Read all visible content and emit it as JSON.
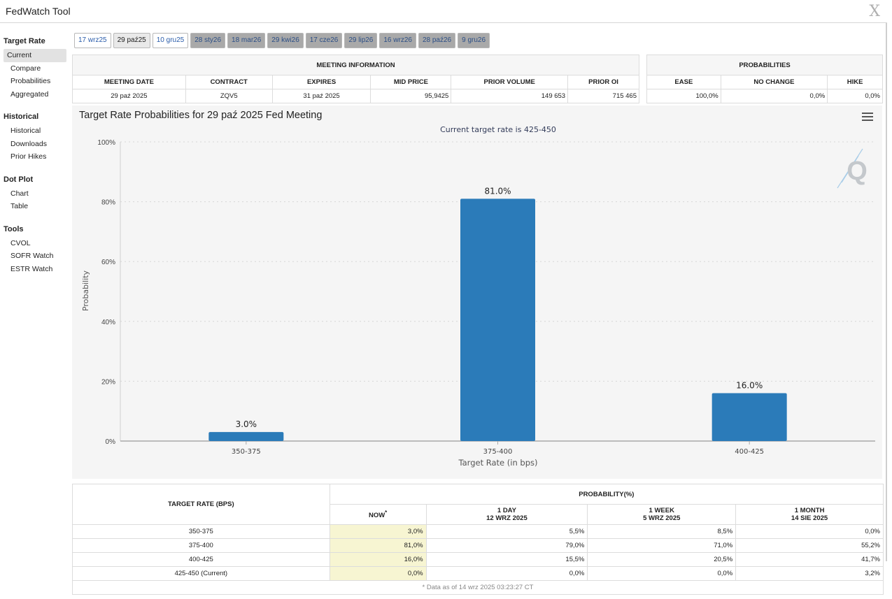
{
  "window": {
    "title": "FedWatch Tool",
    "close_glyph": "X"
  },
  "sidebar": {
    "groups": [
      {
        "title": "Target Rate",
        "items": [
          "Current",
          "Compare",
          "Probabilities",
          "Aggregated"
        ]
      },
      {
        "title": "Historical",
        "items": [
          "Historical",
          "Downloads",
          "Prior Hikes"
        ]
      },
      {
        "title": "Dot Plot",
        "items": [
          "Chart",
          "Table"
        ]
      },
      {
        "title": "Tools",
        "items": [
          "CVOL",
          "SOFR Watch",
          "ESTR Watch"
        ]
      }
    ],
    "active_item": "Current"
  },
  "tabs": [
    "17 wrz25",
    "29 paź25",
    "10 gru25",
    "28 sty26",
    "18 mar26",
    "29 kwi26",
    "17 cze26",
    "29 lip26",
    "16 wrz26",
    "28 paź26",
    "9 gru26"
  ],
  "meeting_info": {
    "header": "MEETING INFORMATION",
    "columns": [
      "MEETING DATE",
      "CONTRACT",
      "EXPIRES",
      "MID PRICE",
      "PRIOR VOLUME",
      "PRIOR OI"
    ],
    "values": [
      "29 paź 2025",
      "ZQV5",
      "31 paź 2025",
      "95,9425",
      "149 653",
      "715 465"
    ]
  },
  "probabilities": {
    "header": "PROBABILITIES",
    "columns": [
      "EASE",
      "NO CHANGE",
      "HIKE"
    ],
    "values": [
      "100,0%",
      "0,0%",
      "0,0%"
    ]
  },
  "chart": {
    "title": "Target Rate Probabilities for 29 paź 2025 Fed Meeting",
    "subtitle": "Current target rate is 425-450",
    "watermark": "Q"
  },
  "chart_data": {
    "type": "bar",
    "categories": [
      "350-375",
      "375-400",
      "400-425"
    ],
    "values": [
      3.0,
      81.0,
      16.0
    ],
    "data_labels": [
      "3.0%",
      "81.0%",
      "16.0%"
    ],
    "xlabel": "Target Rate (in bps)",
    "ylabel": "Probability",
    "ylim": [
      0,
      100
    ],
    "yticks": [
      "0%",
      "20%",
      "40%",
      "60%",
      "80%",
      "100%"
    ],
    "grid": true,
    "bar_color": "#2b7bb9"
  },
  "bottom_table": {
    "col_target": "TARGET RATE (BPS)",
    "col_prob": "PROBABILITY(%)",
    "subcols": [
      {
        "line1": "NOW",
        "line2": ""
      },
      {
        "line1": "1 DAY",
        "line2": "12 WRZ 2025"
      },
      {
        "line1": "1 WEEK",
        "line2": "5 WRZ 2025"
      },
      {
        "line1": "1 MONTH",
        "line2": "14 SIE 2025"
      }
    ],
    "now_marker": "*",
    "rows": [
      [
        "350-375",
        "3,0%",
        "5,5%",
        "8,5%",
        "0,0%"
      ],
      [
        "375-400",
        "81,0%",
        "79,0%",
        "71,0%",
        "55,2%"
      ],
      [
        "400-425",
        "16,0%",
        "15,5%",
        "20,5%",
        "41,7%"
      ],
      [
        "425-450 (Current)",
        "0,0%",
        "0,0%",
        "0,0%",
        "3,2%"
      ]
    ],
    "footnote": "* Data as of 14 wrz 2025 03:23:27 CT"
  }
}
